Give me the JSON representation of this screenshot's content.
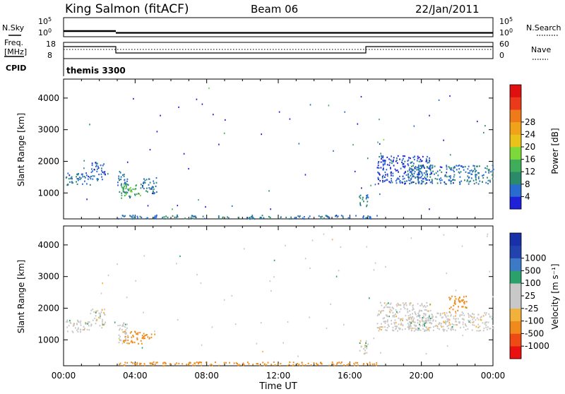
{
  "header": {
    "station": "King Salmon (fitACF)",
    "beam": "Beam 06",
    "date": "22/Jan/2011"
  },
  "sky_panel": {
    "left_label": "N.Sky",
    "right_label": "N.Search",
    "tick_top": "10^5",
    "tick_bottom": "10^0"
  },
  "freq_panel": {
    "left_label_line1": "Freq.",
    "left_label_line2": "[MHz]",
    "right_label": "Nave",
    "left_ticks": [
      "18",
      "8"
    ],
    "right_ticks": [
      "60",
      "0"
    ],
    "cpid_label": "CPID",
    "cpid_value": "themis 3300"
  },
  "colors": {
    "power_scale": [
      "#1f21d9",
      "#2a6bd0",
      "#2a8a6a",
      "#3fae5a",
      "#7dd83a",
      "#e9c21a",
      "#f0a21a",
      "#ee7a1a",
      "#ea3a1a",
      "#e01010"
    ],
    "velocity_scale": [
      "#ea1010",
      "#ee4a14",
      "#f08a1a",
      "#f2b13a",
      "#c8c8c8",
      "#c8c8c8",
      "#2aa06a",
      "#3c7ac8",
      "#2242b0",
      "#1830a8"
    ]
  },
  "x_axis": {
    "label": "Time UT",
    "ticks": [
      "00:00",
      "04:00",
      "08:00",
      "12:00",
      "16:00",
      "20:00",
      "00:00"
    ]
  },
  "power_panel": {
    "ylabel": "Slant Range [km]",
    "colorbar_label": "Power [dB]",
    "colorbar_ticks": [
      "4",
      "8",
      "12",
      "16",
      "20",
      "24",
      "28"
    ]
  },
  "velocity_panel": {
    "ylabel": "Slant Range [km]",
    "colorbar_label": "Velocity [m s⁻¹]",
    "colorbar_ticks": [
      "-1000",
      "-500",
      "-100",
      "-25",
      "25",
      "100",
      "500",
      "1000"
    ]
  },
  "chart_data": [
    {
      "type": "heatmap",
      "title": "Power [dB]",
      "xlabel": "Time UT",
      "ylabel": "Slant Range [km]",
      "xlim": [
        0,
        24
      ],
      "ylim": [
        180,
        4600
      ],
      "ytick_values": [
        1000,
        2000,
        3000,
        4000
      ],
      "colorbar_range": [
        0,
        32
      ],
      "regions": [
        {
          "t": [
            0.1,
            1.5
          ],
          "r": [
            1250,
            1650
          ],
          "v": 6
        },
        {
          "t": [
            1.5,
            2.3
          ],
          "r": [
            1400,
            2000
          ],
          "v": 5
        },
        {
          "t": [
            3.0,
            3.6
          ],
          "r": [
            1000,
            1700
          ],
          "v": 6
        },
        {
          "t": [
            3.2,
            4.3
          ],
          "r": [
            850,
            1300
          ],
          "v": 12
        },
        {
          "t": [
            4.3,
            5.2
          ],
          "r": [
            1000,
            1500
          ],
          "v": 6
        },
        {
          "t": [
            16.5,
            17.0
          ],
          "r": [
            550,
            1000
          ],
          "v": 7
        },
        {
          "t": [
            17.5,
            20.5
          ],
          "r": [
            1300,
            2200
          ],
          "v": 4
        },
        {
          "t": [
            19.2,
            24.0
          ],
          "r": [
            1300,
            1900
          ],
          "v": 6
        },
        {
          "t": [
            3.0,
            17.5
          ],
          "r": [
            200,
            320
          ],
          "v": 6
        }
      ]
    },
    {
      "type": "heatmap",
      "title": "Velocity [m s⁻¹]",
      "xlabel": "Time UT",
      "ylabel": "Slant Range [km]",
      "xlim": [
        0,
        24
      ],
      "ylim": [
        180,
        4600
      ],
      "ytick_values": [
        1000,
        2000,
        3000,
        4000
      ],
      "colorbar_range": [
        -1000,
        1000
      ],
      "regions": [
        {
          "t": [
            0.1,
            1.5
          ],
          "r": [
            1250,
            1650
          ],
          "v": 0
        },
        {
          "t": [
            1.5,
            2.3
          ],
          "r": [
            1400,
            2000
          ],
          "v": 0
        },
        {
          "t": [
            3.0,
            3.6
          ],
          "r": [
            900,
            1600
          ],
          "v": 0
        },
        {
          "t": [
            3.3,
            4.4
          ],
          "r": [
            900,
            1300
          ],
          "v": -150
        },
        {
          "t": [
            4.4,
            5.1
          ],
          "r": [
            1050,
            1300
          ],
          "v": -200
        },
        {
          "t": [
            16.5,
            17.0
          ],
          "r": [
            550,
            1000
          ],
          "v": 0
        },
        {
          "t": [
            17.5,
            20.5
          ],
          "r": [
            1300,
            2200
          ],
          "v": 0
        },
        {
          "t": [
            19.2,
            24.0
          ],
          "r": [
            1300,
            1900
          ],
          "v": 0
        },
        {
          "t": [
            21.5,
            22.5
          ],
          "r": [
            1900,
            2400
          ],
          "v": -150
        },
        {
          "t": [
            3.0,
            17.5
          ],
          "r": [
            200,
            320
          ],
          "v": -150
        }
      ]
    }
  ]
}
